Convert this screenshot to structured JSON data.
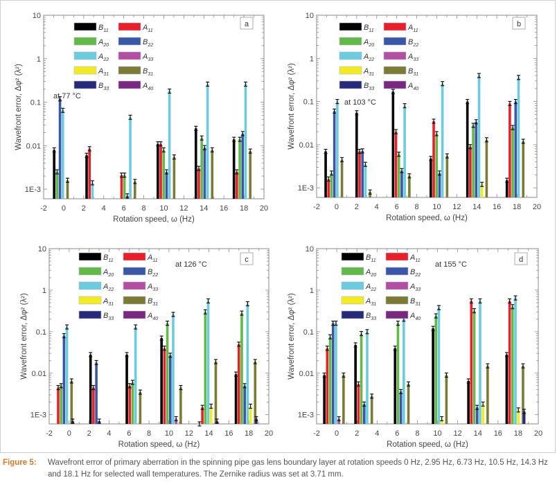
{
  "figure": {
    "caption_label": "Figure 5:",
    "caption_text": "Wavefront error of primary aberration in the spinning pipe gas lens boundary layer at rotation speeds 0 Hz, 2.95 Hz, 6.73 Hz, 10.5 Hz, 14.3 Hz and 18.1 Hz for selected wall temperatures. The Zernike radius was set at 3.71 mm."
  },
  "legend": [
    {
      "base": "B",
      "sub": "11",
      "color": "#000000"
    },
    {
      "base": "A",
      "sub": "11",
      "color": "#e8202a"
    },
    {
      "base": "A",
      "sub": "20",
      "color": "#63b947"
    },
    {
      "base": "B",
      "sub": "22",
      "color": "#3a56a6"
    },
    {
      "base": "A",
      "sub": "22",
      "color": "#6ccbdc"
    },
    {
      "base": "A",
      "sub": "33",
      "color": "#b34fa0"
    },
    {
      "base": "A",
      "sub": "31",
      "color": "#f2ea22"
    },
    {
      "base": "B",
      "sub": "31",
      "color": "#7b7b35"
    },
    {
      "base": "B",
      "sub": "33",
      "color": "#262a78"
    },
    {
      "base": "A",
      "sub": "40",
      "color": "#7a2a7e"
    }
  ],
  "chart_data": [
    {
      "type": "bar",
      "panel": "a",
      "annotation": "at 77 °C",
      "title": "",
      "xlabel": "Rotation speed, ω (Hz)",
      "ylabel": "Wavefront error, Δφ² (λ²)",
      "yscale": "log",
      "xlim": [
        -2,
        20
      ],
      "ylim": [
        0.0006,
        10
      ],
      "xticks": [
        "-2",
        "0",
        "2",
        "4",
        "6",
        "8",
        "10",
        "12",
        "14",
        "16",
        "18",
        "20"
      ],
      "yticks": [
        "1E-3",
        "0.01",
        "0.1",
        "1",
        "10"
      ],
      "legend_position": "top-left",
      "categories": [
        0,
        2.95,
        6.73,
        10.5,
        14.3,
        18.1
      ],
      "series": [
        {
          "name": "B11",
          "values": [
            0.008,
            0.006,
            null,
            0.011,
            0.025,
            0.014
          ]
        },
        {
          "name": "A11",
          "values": [
            null,
            0.0085,
            0.0021,
            0.011,
            0.003,
            0.0025
          ]
        },
        {
          "name": "A20",
          "values": [
            0.0025,
            null,
            0.0021,
            0.008,
            0.015,
            0.014
          ]
        },
        {
          "name": "B22",
          "values": [
            0.12,
            null,
            0.0007,
            0.0025,
            0.009,
            0.019
          ]
        },
        {
          "name": "A22",
          "values": [
            0.065,
            0.0014,
            0.045,
            0.18,
            0.26,
            0.26
          ]
        },
        {
          "name": "A33",
          "values": [
            null,
            null,
            null,
            null,
            null,
            null
          ]
        },
        {
          "name": "A31",
          "values": [
            null,
            null,
            null,
            null,
            null,
            null
          ]
        },
        {
          "name": "B31",
          "values": [
            0.0016,
            null,
            0.0015,
            0.0055,
            0.008,
            0.0075
          ]
        },
        {
          "name": "B33",
          "values": [
            null,
            null,
            null,
            null,
            null,
            null
          ]
        },
        {
          "name": "A40",
          "values": [
            null,
            null,
            null,
            null,
            null,
            null
          ]
        }
      ]
    },
    {
      "type": "bar",
      "panel": "b",
      "annotation": "at 103 °C",
      "title": "",
      "xlabel": "Rotation speed, ω (Hz)",
      "ylabel": "Wavefront error, Δφ² (λ²)",
      "yscale": "log",
      "xlim": [
        -2,
        20
      ],
      "ylim": [
        0.0006,
        10
      ],
      "xticks": [
        "-2",
        "0",
        "2",
        "4",
        "6",
        "8",
        "10",
        "12",
        "14",
        "16",
        "18",
        "20"
      ],
      "yticks": [
        "1E-3",
        "0.01",
        "0.1",
        "1",
        "10"
      ],
      "legend_position": "top-left",
      "categories": [
        0,
        2.95,
        6.73,
        10.5,
        14.3,
        18.1
      ],
      "series": [
        {
          "name": "B11",
          "values": [
            0.007,
            0.055,
            0.17,
            0.0048,
            0.1,
            0.0015
          ]
        },
        {
          "name": "A11",
          "values": [
            0.0016,
            0.007,
            0.02,
            0.035,
            0.009,
            0.09
          ]
        },
        {
          "name": "A20",
          "values": [
            0.0022,
            null,
            0.006,
            0.018,
            0.028,
            0.025
          ]
        },
        {
          "name": "B22",
          "values": [
            0.06,
            0.0072,
            0.0025,
            0.0022,
            0.034,
            0.1
          ]
        },
        {
          "name": "A22",
          "values": [
            0.1,
            0.0035,
            0.08,
            0.26,
            0.4,
            0.36
          ]
        },
        {
          "name": "A33",
          "values": [
            null,
            null,
            null,
            null,
            null,
            null
          ]
        },
        {
          "name": "A31",
          "values": [
            null,
            null,
            null,
            null,
            0.0012,
            null
          ]
        },
        {
          "name": "B31",
          "values": [
            0.0045,
            0.0008,
            0.0019,
            0.0055,
            0.013,
            0.012
          ]
        },
        {
          "name": "B33",
          "values": [
            null,
            null,
            null,
            null,
            null,
            null
          ]
        },
        {
          "name": "A40",
          "values": [
            null,
            null,
            null,
            null,
            null,
            null
          ]
        }
      ]
    },
    {
      "type": "bar",
      "panel": "c",
      "annotation": "at 126 °C",
      "title": "",
      "xlabel": "Rotation speed, ω (Hz)",
      "ylabel": "Wavefront error, Δφ² (λ²)",
      "yscale": "log",
      "xlim": [
        -2,
        20
      ],
      "ylim": [
        0.0006,
        10
      ],
      "xticks": [
        "-2",
        "0",
        "2",
        "4",
        "6",
        "8",
        "10",
        "12",
        "14",
        "16",
        "18",
        "20"
      ],
      "yticks": [
        "1E-3",
        "0.01",
        "0.1",
        "1",
        "10"
      ],
      "legend_position": "top-left",
      "categories": [
        0,
        2.95,
        6.73,
        10.5,
        14.3,
        18.1
      ],
      "series": [
        {
          "name": "B11",
          "values": [
            null,
            0.028,
            0.028,
            0.07,
            0.0006,
            0.0095
          ]
        },
        {
          "name": "A11",
          "values": [
            0.0045,
            0.0045,
            0.005,
            0.04,
            0.0015,
            0.05
          ]
        },
        {
          "name": "A20",
          "values": [
            0.005,
            null,
            0.006,
            0.16,
            0.3,
            0.28
          ]
        },
        {
          "name": "B22",
          "values": [
            0.08,
            0.018,
            null,
            0.027,
            null,
            0.005
          ]
        },
        {
          "name": "A22",
          "values": [
            0.13,
            null,
            0.13,
            0.26,
            0.55,
            0.47
          ]
        },
        {
          "name": "A33",
          "values": [
            null,
            null,
            null,
            0.0008,
            null,
            null
          ]
        },
        {
          "name": "A31",
          "values": [
            null,
            null,
            null,
            null,
            0.0016,
            0.0016
          ]
        },
        {
          "name": "B31",
          "values": [
            0.0065,
            null,
            0.0035,
            0.0045,
            0.019,
            0.019
          ]
        },
        {
          "name": "B33",
          "values": [
            0.0007,
            0.0007,
            null,
            null,
            0.0007,
            0.0008
          ]
        },
        {
          "name": "A40",
          "values": [
            null,
            null,
            null,
            null,
            null,
            null
          ]
        }
      ]
    },
    {
      "type": "bar",
      "panel": "d",
      "annotation": "at 155 °C",
      "title": "",
      "xlabel": "Rotation speed, ω (Hz)",
      "ylabel": "Wavefront error, Δφ² (λ²)",
      "yscale": "log",
      "xlim": [
        -2,
        20
      ],
      "ylim": [
        0.0006,
        10
      ],
      "xticks": [
        "-2",
        "0",
        "2",
        "4",
        "6",
        "8",
        "10",
        "12",
        "14",
        "16",
        "18",
        "20"
      ],
      "yticks": [
        "1E-3",
        "0.01",
        "0.1",
        "1",
        "10"
      ],
      "legend_position": "top-left",
      "categories": [
        0,
        2.95,
        6.73,
        10.5,
        14.3,
        18.1
      ],
      "series": [
        {
          "name": "B11",
          "values": [
            0.009,
            0.048,
            0.04,
            0.12,
            0.0065,
            0.028
          ]
        },
        {
          "name": "A11",
          "values": [
            0.04,
            0.0055,
            null,
            null,
            0.55,
            0.55
          ]
        },
        {
          "name": "A20",
          "values": [
            0.075,
            0.09,
            0.16,
            0.24,
            0.32,
            0.4
          ]
        },
        {
          "name": "B22",
          "values": [
            0.16,
            0.0018,
            0.0036,
            null,
            0.0015,
            null
          ]
        },
        {
          "name": "A22",
          "values": [
            0.16,
            0.1,
            0.2,
            0.38,
            0.55,
            0.65
          ]
        },
        {
          "name": "A33",
          "values": [
            0.0008,
            null,
            null,
            null,
            null,
            null
          ]
        },
        {
          "name": "A31",
          "values": [
            null,
            null,
            null,
            0.0008,
            0.0018,
            0.0013
          ]
        },
        {
          "name": "B31",
          "values": [
            0.009,
            0.0028,
            0.0055,
            0.009,
            0.015,
            0.015
          ]
        },
        {
          "name": "B33",
          "values": [
            null,
            null,
            null,
            null,
            null,
            0.0012
          ]
        },
        {
          "name": "A40",
          "values": [
            null,
            null,
            null,
            null,
            null,
            null
          ]
        }
      ]
    }
  ]
}
